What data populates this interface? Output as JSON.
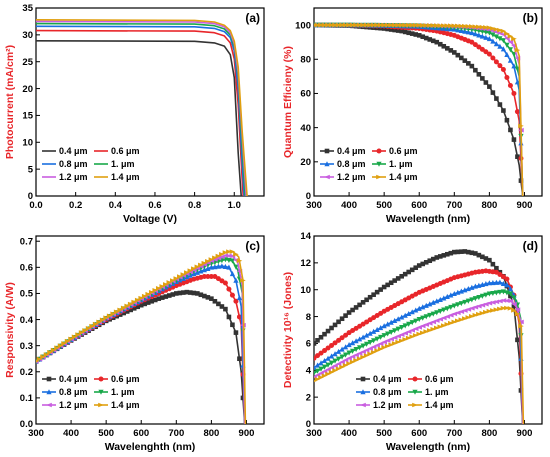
{
  "series_colors": [
    "#333333",
    "#e8262a",
    "#1a6fe0",
    "#19a84a",
    "#c95ee0",
    "#e0a010"
  ],
  "chart_data": [
    {
      "id": "a",
      "type": "line",
      "panel_label": "(a)",
      "xlabel": "Voltage (V)",
      "ylabel": "Photocurrent (mA/cm²)",
      "xlim": [
        0,
        1.15
      ],
      "ylim": [
        0,
        35
      ],
      "xticks": [
        0.0,
        0.2,
        0.4,
        0.6,
        0.8,
        1.0
      ],
      "xtick_labels": [
        "0.0",
        "0.2",
        "0.4",
        "0.6",
        "0.8",
        "1.0"
      ],
      "yticks": [
        0,
        5,
        10,
        15,
        20,
        25,
        30,
        35
      ],
      "ytick_labels": [
        "0",
        "5",
        "10",
        "15",
        "20",
        "25",
        "30",
        "35"
      ],
      "ylabel_color": "#e8262a",
      "legend_position": "bottom-left",
      "markers": false,
      "series": [
        {
          "name": "0.4 μm",
          "x": [
            0,
            0.8,
            0.9,
            0.95,
            0.98,
            1.0,
            1.02,
            1.035
          ],
          "y": [
            28.9,
            28.8,
            28.5,
            27.9,
            26.3,
            22,
            8,
            0
          ]
        },
        {
          "name": "0.6 μm",
          "x": [
            0,
            0.8,
            0.9,
            0.95,
            0.98,
            1.0,
            1.02,
            1.04,
            1.045
          ],
          "y": [
            30.8,
            30.7,
            30.4,
            29.8,
            28.5,
            25.5,
            17,
            3,
            0
          ]
        },
        {
          "name": "0.8 μm",
          "x": [
            0,
            0.8,
            0.9,
            0.95,
            0.98,
            1.0,
            1.02,
            1.04,
            1.05
          ],
          "y": [
            31.6,
            31.5,
            31.2,
            30.6,
            29.5,
            27,
            20,
            6,
            0
          ]
        },
        {
          "name": "1. μm",
          "x": [
            0,
            0.8,
            0.9,
            0.95,
            0.98,
            1.0,
            1.02,
            1.04,
            1.055
          ],
          "y": [
            32.1,
            32.0,
            31.7,
            31.1,
            30.0,
            27.8,
            22,
            9,
            0
          ]
        },
        {
          "name": "1.2 μm",
          "x": [
            0,
            0.8,
            0.9,
            0.95,
            0.98,
            1.0,
            1.02,
            1.04,
            1.06
          ],
          "y": [
            32.5,
            32.4,
            32.1,
            31.5,
            30.4,
            28.3,
            23,
            11,
            0
          ]
        },
        {
          "name": "1.4 μm",
          "x": [
            0,
            0.8,
            0.9,
            0.95,
            0.98,
            1.0,
            1.02,
            1.04,
            1.065
          ],
          "y": [
            32.8,
            32.7,
            32.4,
            31.8,
            30.8,
            28.8,
            24,
            12,
            0
          ]
        }
      ]
    },
    {
      "id": "b",
      "type": "line",
      "panel_label": "(b)",
      "xlabel": "Wavelength (nm)",
      "ylabel": "Quantum Efficieny (%)",
      "xlim": [
        300,
        950
      ],
      "ylim": [
        0,
        110
      ],
      "xticks": [
        300,
        400,
        500,
        600,
        700,
        800,
        900
      ],
      "xtick_labels": [
        "300",
        "400",
        "500",
        "600",
        "700",
        "800",
        "900"
      ],
      "yticks": [
        0,
        20,
        40,
        60,
        80,
        100
      ],
      "ytick_labels": [
        "0",
        "20",
        "40",
        "60",
        "80",
        "100"
      ],
      "ylabel_color": "#e8262a",
      "legend_position": "bottom-left",
      "markers": true,
      "series": [
        {
          "name": "0.4 μm",
          "x": [
            300,
            400,
            500,
            550,
            600,
            650,
            700,
            750,
            800,
            840,
            870,
            885,
            895
          ],
          "y": [
            100,
            99.7,
            98,
            96.5,
            94,
            90,
            84,
            76,
            64,
            50,
            33,
            18,
            0
          ]
        },
        {
          "name": "0.6 μm",
          "x": [
            300,
            400,
            500,
            600,
            650,
            700,
            750,
            800,
            840,
            870,
            885,
            895
          ],
          "y": [
            100,
            99.9,
            99.4,
            98,
            96.5,
            94,
            90,
            83,
            74,
            60,
            44,
            0
          ]
        },
        {
          "name": "0.8 μm",
          "x": [
            300,
            400,
            500,
            600,
            700,
            750,
            800,
            840,
            870,
            885,
            895
          ],
          "y": [
            100,
            100,
            99.8,
            99.2,
            97.5,
            95.5,
            92,
            86,
            76,
            62,
            0
          ]
        },
        {
          "name": "1. μm",
          "x": [
            300,
            400,
            500,
            600,
            700,
            750,
            800,
            840,
            870,
            885,
            895
          ],
          "y": [
            100,
            100,
            99.9,
            99.6,
            98.6,
            97.5,
            95.5,
            91,
            83,
            70,
            0
          ]
        },
        {
          "name": "1.2 μm",
          "x": [
            300,
            400,
            500,
            600,
            700,
            750,
            800,
            840,
            870,
            885,
            895
          ],
          "y": [
            100,
            100,
            100,
            99.8,
            99.3,
            98.6,
            97.4,
            94.5,
            88,
            77,
            0
          ]
        },
        {
          "name": "1.4 μm",
          "x": [
            300,
            400,
            500,
            600,
            700,
            750,
            800,
            840,
            870,
            885,
            895
          ],
          "y": [
            100,
            100,
            100,
            99.9,
            99.6,
            99.2,
            98.5,
            96.5,
            92,
            82,
            0
          ]
        }
      ]
    },
    {
      "id": "c",
      "type": "line",
      "panel_label": "(c)",
      "xlabel": "Wavelenghth (nm)",
      "ylabel": "Responsivity (A/W)",
      "xlim": [
        300,
        950
      ],
      "ylim": [
        0,
        0.72
      ],
      "xticks": [
        300,
        400,
        500,
        600,
        700,
        800,
        900
      ],
      "xtick_labels": [
        "300",
        "400",
        "500",
        "600",
        "700",
        "800",
        "900"
      ],
      "yticks": [
        0.0,
        0.1,
        0.2,
        0.3,
        0.4,
        0.5,
        0.6,
        0.7
      ],
      "ytick_labels": [
        "0.0",
        "0.1",
        "0.2",
        "0.3",
        "0.4",
        "0.5",
        "0.6",
        "0.7"
      ],
      "ylabel_color": "#e8262a",
      "legend_position": "bottom-left",
      "markers": true,
      "series": [
        {
          "name": "0.4 μm",
          "x": [
            300,
            400,
            500,
            600,
            650,
            700,
            730,
            760,
            800,
            840,
            870,
            885,
            895
          ],
          "y": [
            0.24,
            0.32,
            0.395,
            0.455,
            0.48,
            0.5,
            0.505,
            0.5,
            0.48,
            0.44,
            0.35,
            0.2,
            0
          ]
        },
        {
          "name": "0.6 μm",
          "x": [
            300,
            400,
            500,
            600,
            700,
            750,
            780,
            810,
            840,
            870,
            885,
            895
          ],
          "y": [
            0.24,
            0.322,
            0.4,
            0.47,
            0.53,
            0.555,
            0.565,
            0.565,
            0.54,
            0.47,
            0.38,
            0
          ]
        },
        {
          "name": "0.8 μm",
          "x": [
            300,
            400,
            500,
            600,
            700,
            750,
            800,
            830,
            850,
            870,
            885,
            895
          ],
          "y": [
            0.24,
            0.323,
            0.405,
            0.475,
            0.545,
            0.575,
            0.6,
            0.605,
            0.6,
            0.55,
            0.45,
            0
          ]
        },
        {
          "name": "1. μm",
          "x": [
            300,
            400,
            500,
            600,
            700,
            750,
            800,
            840,
            860,
            875,
            888,
            895
          ],
          "y": [
            0.24,
            0.324,
            0.405,
            0.478,
            0.55,
            0.585,
            0.615,
            0.63,
            0.625,
            0.59,
            0.5,
            0
          ]
        },
        {
          "name": "1.2 μm",
          "x": [
            300,
            400,
            500,
            600,
            700,
            750,
            800,
            840,
            860,
            875,
            888,
            895
          ],
          "y": [
            0.24,
            0.325,
            0.406,
            0.48,
            0.555,
            0.59,
            0.625,
            0.645,
            0.643,
            0.62,
            0.53,
            0
          ]
        },
        {
          "name": "1.4 μm",
          "x": [
            300,
            400,
            500,
            600,
            700,
            750,
            800,
            845,
            862,
            878,
            890,
            897
          ],
          "y": [
            0.24,
            0.326,
            0.407,
            0.482,
            0.557,
            0.595,
            0.63,
            0.66,
            0.66,
            0.64,
            0.55,
            0
          ]
        }
      ]
    },
    {
      "id": "d",
      "type": "line",
      "panel_label": "(d)",
      "xlabel": "Wavelength (nm)",
      "ylabel": "Detectivity 10¹⁶ (Jones)",
      "xlim": [
        300,
        950
      ],
      "ylim": [
        0,
        14
      ],
      "xticks": [
        300,
        400,
        500,
        600,
        700,
        800,
        900
      ],
      "xtick_labels": [
        "300",
        "400",
        "500",
        "600",
        "700",
        "800",
        "900"
      ],
      "yticks": [
        0,
        2,
        4,
        6,
        8,
        10,
        12,
        14
      ],
      "ytick_labels": [
        "0",
        "2",
        "4",
        "6",
        "8",
        "10",
        "12",
        "14"
      ],
      "ylabel_color": "#e8262a",
      "legend_position": "bottom-center",
      "markers": true,
      "series": [
        {
          "name": "0.4 μm",
          "x": [
            300,
            400,
            500,
            600,
            650,
            700,
            730,
            760,
            800,
            840,
            870,
            885,
            895
          ],
          "y": [
            6.0,
            8.3,
            10.2,
            11.8,
            12.4,
            12.8,
            12.85,
            12.7,
            12.2,
            11.0,
            8.8,
            5.0,
            0
          ]
        },
        {
          "name": "0.6 μm",
          "x": [
            300,
            400,
            500,
            600,
            700,
            760,
            790,
            820,
            850,
            870,
            885,
            895
          ],
          "y": [
            4.9,
            6.8,
            8.4,
            9.8,
            10.9,
            11.3,
            11.4,
            11.3,
            10.8,
            9.6,
            7.5,
            0
          ]
        },
        {
          "name": "0.8 μm",
          "x": [
            300,
            400,
            500,
            600,
            700,
            760,
            800,
            830,
            855,
            872,
            887,
            895
          ],
          "y": [
            4.2,
            5.9,
            7.3,
            8.6,
            9.7,
            10.25,
            10.5,
            10.55,
            10.3,
            9.5,
            7.8,
            0
          ]
        },
        {
          "name": "1. μm",
          "x": [
            300,
            400,
            500,
            600,
            700,
            760,
            800,
            840,
            860,
            877,
            889,
            895
          ],
          "y": [
            3.8,
            5.3,
            6.6,
            7.8,
            8.8,
            9.35,
            9.7,
            9.85,
            9.7,
            9.2,
            7.9,
            0
          ]
        },
        {
          "name": "1.2 μm",
          "x": [
            300,
            400,
            500,
            600,
            700,
            760,
            800,
            840,
            862,
            878,
            890,
            895
          ],
          "y": [
            3.5,
            4.9,
            6.1,
            7.2,
            8.2,
            8.7,
            9.0,
            9.2,
            9.15,
            8.7,
            7.6,
            0
          ]
        },
        {
          "name": "1.4 μm",
          "x": [
            300,
            400,
            500,
            600,
            700,
            760,
            800,
            845,
            865,
            880,
            891,
            897
          ],
          "y": [
            3.2,
            4.5,
            5.7,
            6.7,
            7.6,
            8.1,
            8.4,
            8.65,
            8.6,
            8.2,
            7.2,
            0
          ]
        }
      ]
    }
  ]
}
